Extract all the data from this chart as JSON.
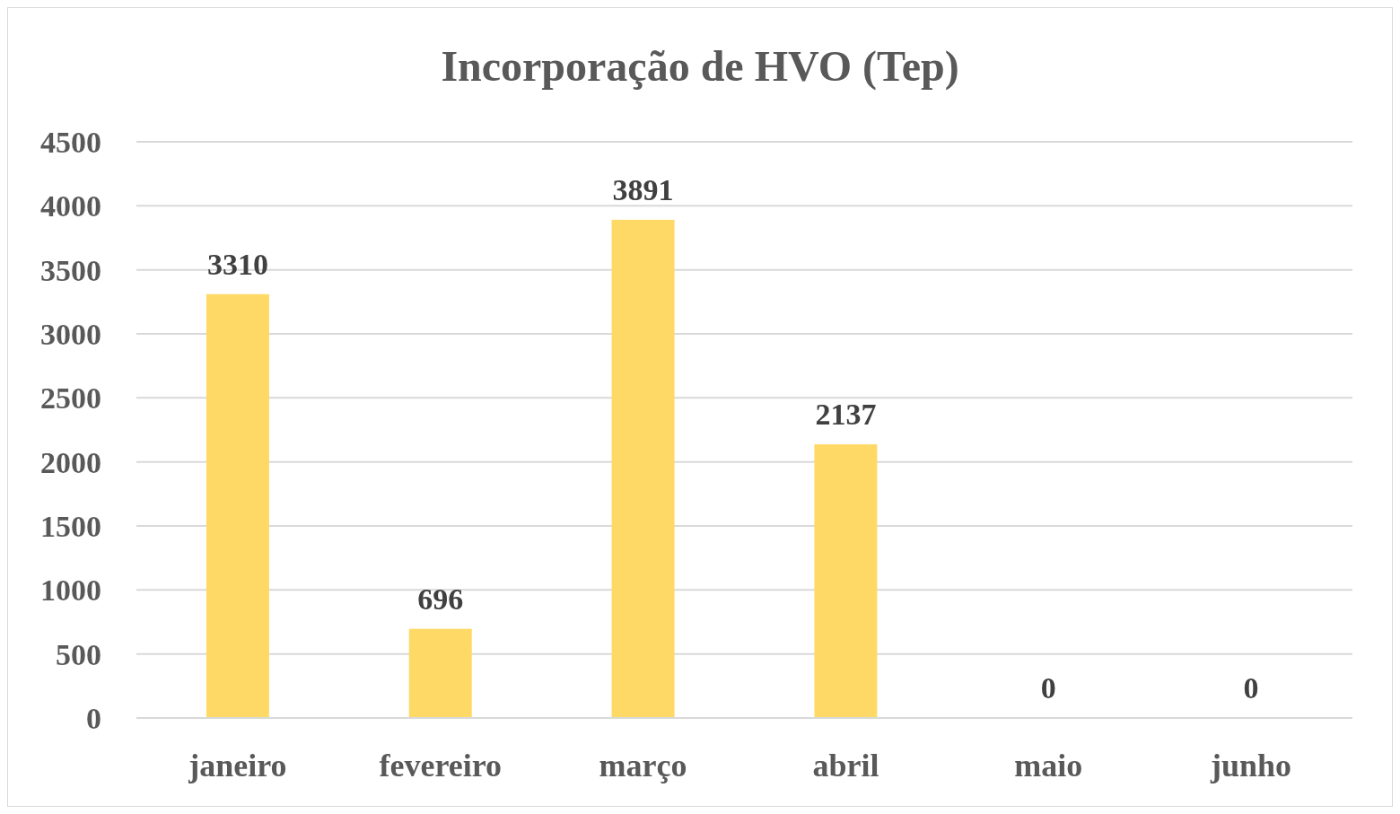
{
  "chart_data": {
    "type": "bar",
    "title": "Incorporação de HVO (Tep)",
    "categories": [
      "janeiro",
      "fevereiro",
      "março",
      "abril",
      "maio",
      "junho"
    ],
    "values": [
      3310,
      696,
      3891,
      2137,
      0,
      0
    ],
    "color": "#ffd966",
    "ylim": [
      0,
      4500
    ],
    "yticks": [
      0,
      500,
      1000,
      1500,
      2000,
      2500,
      3000,
      3500,
      4000,
      4500
    ],
    "grid": true,
    "data_labels": true
  }
}
